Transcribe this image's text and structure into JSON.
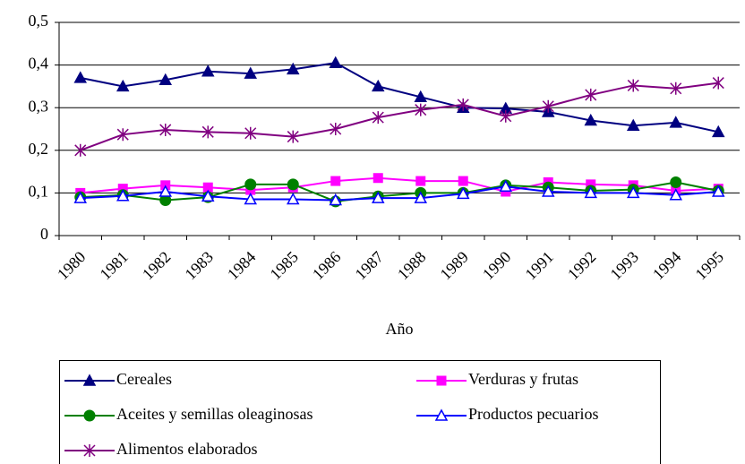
{
  "chart_data": {
    "type": "line",
    "xlabel": "Año",
    "categories": [
      "1980",
      "1981",
      "1982",
      "1983",
      "1984",
      "1985",
      "1986",
      "1987",
      "1988",
      "1989",
      "1990",
      "1991",
      "1992",
      "1993",
      "1994",
      "1995"
    ],
    "ylim": [
      0,
      0.5
    ],
    "yticks": [
      0,
      {
        "value": 0.1,
        "label": "0,1"
      },
      {
        "value": 0.2,
        "label": "0,2"
      },
      {
        "value": 0.3,
        "label": "0,3"
      },
      {
        "value": 0.4,
        "label": "0,4"
      },
      {
        "value": 0.5,
        "label": "0,5"
      }
    ],
    "grid": true,
    "legend": "bottom",
    "series": [
      {
        "name": "Cereales",
        "color": "#000080",
        "marker": "triangle",
        "values": [
          0.37,
          0.35,
          0.365,
          0.385,
          0.38,
          0.39,
          0.405,
          0.35,
          0.325,
          0.3,
          0.298,
          0.29,
          0.27,
          0.258,
          0.265,
          0.243
        ]
      },
      {
        "name": "Verduras y frutas",
        "color": "#ff00ff",
        "marker": "square",
        "values": [
          0.1,
          0.11,
          0.118,
          0.113,
          0.107,
          0.113,
          0.128,
          0.135,
          0.128,
          0.128,
          0.103,
          0.125,
          0.12,
          0.118,
          0.105,
          0.11
        ]
      },
      {
        "name": "Aceites y semillas oleaginosas",
        "color": "#008000",
        "marker": "circle",
        "values": [
          0.09,
          0.095,
          0.083,
          0.09,
          0.12,
          0.12,
          0.08,
          0.092,
          0.1,
          0.1,
          0.118,
          0.113,
          0.105,
          0.108,
          0.125,
          0.105
        ]
      },
      {
        "name": "Productos pecuarios",
        "color": "#0000ff",
        "marker": "open-triangle",
        "values": [
          0.088,
          0.093,
          0.103,
          0.092,
          0.085,
          0.085,
          0.083,
          0.088,
          0.088,
          0.098,
          0.115,
          0.103,
          0.1,
          0.1,
          0.095,
          0.103
        ]
      },
      {
        "name": "Alimentos elaborados",
        "color": "#800080",
        "marker": "asterisk",
        "values": [
          0.2,
          0.237,
          0.248,
          0.243,
          0.24,
          0.232,
          0.25,
          0.277,
          0.295,
          0.307,
          0.28,
          0.303,
          0.33,
          0.352,
          0.345,
          0.358
        ]
      }
    ]
  }
}
